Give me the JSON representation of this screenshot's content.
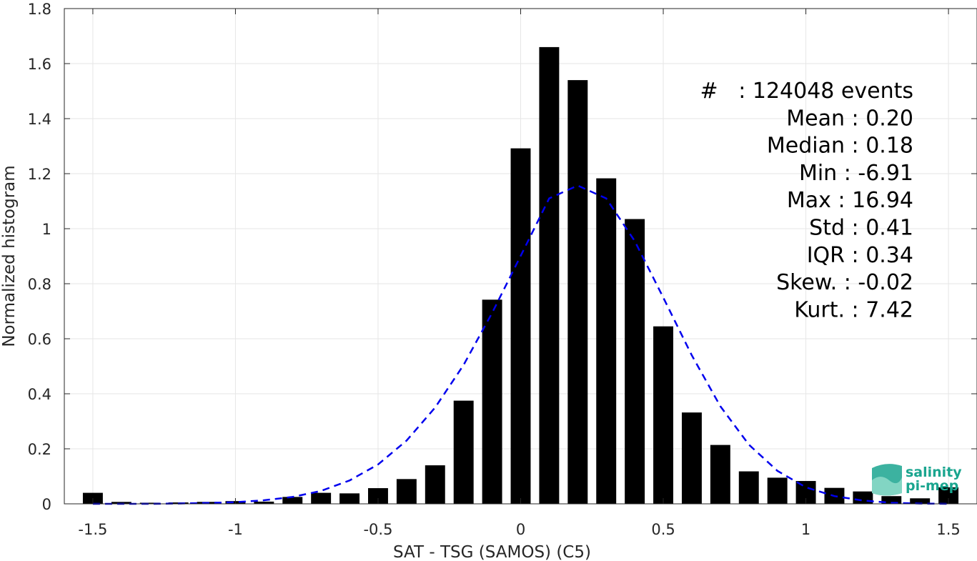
{
  "chart_data": {
    "type": "bar",
    "xlabel": "SAT - TSG (SAMOS) (C5)",
    "ylabel": "Normalized histogram",
    "xlim": [
      -1.6,
      1.6
    ],
    "ylim": [
      0,
      1.8
    ],
    "xticks": [
      -1.5,
      -1,
      -0.5,
      0,
      0.5,
      1,
      1.5
    ],
    "xtick_labels": [
      "-1.5",
      "-1",
      "-0.5",
      "0",
      "0.5",
      "1",
      "1.5"
    ],
    "yticks": [
      0,
      0.2,
      0.4,
      0.6,
      0.8,
      1,
      1.2,
      1.4,
      1.6,
      1.8
    ],
    "ytick_labels": [
      "0",
      "0.2",
      "0.4",
      "0.6",
      "0.8",
      "1",
      "1.2",
      "1.4",
      "1.6",
      "1.8"
    ],
    "grid": true,
    "bar_color": "#000000",
    "bar_width": 0.07,
    "bins": [
      -1.5,
      -1.4,
      -1.3,
      -1.2,
      -1.1,
      -1.0,
      -0.9,
      -0.8,
      -0.7,
      -0.6,
      -0.5,
      -0.4,
      -0.3,
      -0.2,
      -0.1,
      0.0,
      0.1,
      0.2,
      0.3,
      0.4,
      0.5,
      0.6,
      0.7,
      0.8,
      0.9,
      1.0,
      1.1,
      1.2,
      1.3,
      1.4,
      1.5
    ],
    "values": [
      0.04,
      0.007,
      0.004,
      0.005,
      0.007,
      0.01,
      0.008,
      0.025,
      0.04,
      0.038,
      0.057,
      0.09,
      0.14,
      0.375,
      0.742,
      1.292,
      1.66,
      1.54,
      1.183,
      1.035,
      0.645,
      0.332,
      0.214,
      0.118,
      0.095,
      0.083,
      0.058,
      0.045,
      0.028,
      0.02,
      0.06
    ],
    "fit_curve": {
      "style": "dashed",
      "color": "#0000ee",
      "x": [
        -1.5,
        -1.4,
        -1.3,
        -1.2,
        -1.1,
        -1.0,
        -0.9,
        -0.8,
        -0.7,
        -0.6,
        -0.5,
        -0.4,
        -0.3,
        -0.2,
        -0.1,
        0.0,
        0.1,
        0.2,
        0.3,
        0.4,
        0.5,
        0.6,
        0.7,
        0.8,
        0.9,
        1.0,
        1.1,
        1.2,
        1.3,
        1.4,
        1.5
      ],
      "y": [
        0.0,
        0.0,
        0.0,
        0.001,
        0.003,
        0.006,
        0.013,
        0.025,
        0.047,
        0.085,
        0.143,
        0.23,
        0.35,
        0.505,
        0.694,
        0.901,
        1.11,
        1.157,
        1.11,
        0.955,
        0.75,
        0.54,
        0.355,
        0.215,
        0.12,
        0.06,
        0.028,
        0.012,
        0.004,
        0.001,
        0.0
      ]
    },
    "stats": [
      "#   : 124048 events",
      "Mean : 0.20",
      "Median : 0.18",
      "Min : -6.91",
      "Max : 16.94",
      "Std : 0.41",
      "IQR : 0.34",
      "Skew. : -0.02",
      "Kurt. : 7.42"
    ]
  },
  "logo": {
    "line1": "salinity",
    "line2": "pi-mep",
    "color": "#1aa58f"
  }
}
